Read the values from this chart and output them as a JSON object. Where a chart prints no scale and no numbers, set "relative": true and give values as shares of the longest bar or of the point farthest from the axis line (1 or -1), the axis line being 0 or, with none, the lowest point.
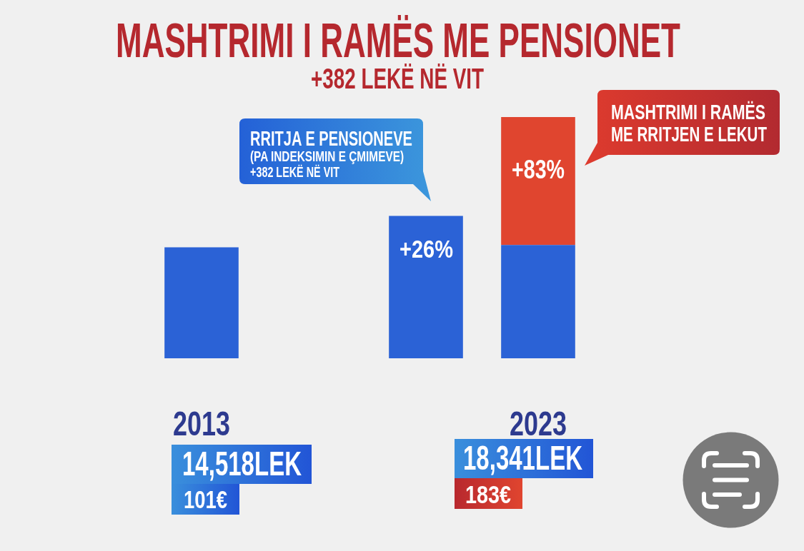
{
  "chart_data": {
    "type": "bar",
    "title": "MASHTRIMI I RAMËS ME PENSIONET",
    "subtitle": "+382 LEKË NË VIT",
    "categories": [
      "2013",
      null,
      null,
      "2023"
    ],
    "relative": true,
    "stacked": true,
    "series": [
      {
        "color": "#2b62d6",
        "values": [
          0.46,
          null,
          0.59,
          0.47
        ]
      },
      {
        "color": "#e0452f",
        "values": [
          null,
          null,
          null,
          0.53
        ]
      }
    ],
    "annotations": [
      "+26%",
      "+83%",
      "RRITJA E PENSIONEVE\n(PA INDEKSIMIN E ÇMIMEVE)\n+382 LEKË NË VIT",
      "MASHTRIMI I RAMËS\nME RRITJEN E LEKUT",
      "14,518LEK",
      "101€",
      "18,341LEK",
      "183€"
    ]
  }
}
